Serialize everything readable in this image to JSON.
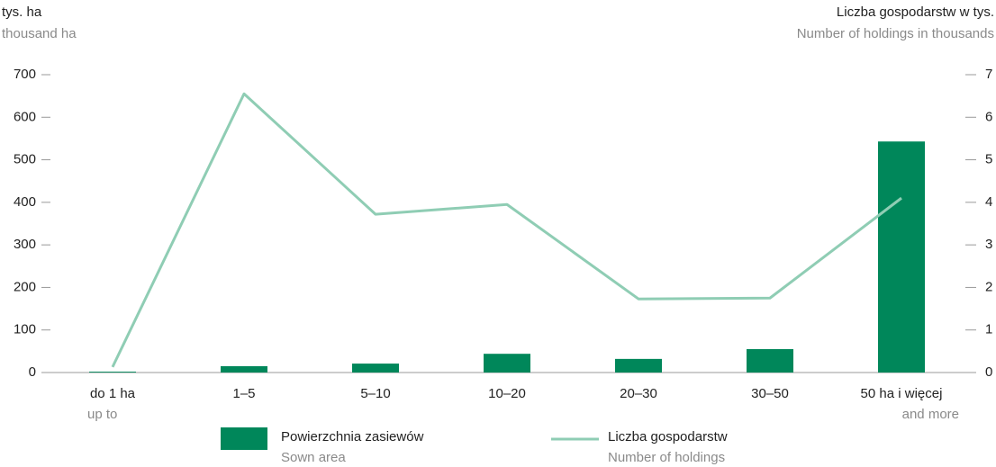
{
  "chart_data": {
    "type": "bar-line",
    "y_label": "tys. ha",
    "y_label_en": "thousand ha",
    "y2_label": "Liczba gospodarstw w tys.",
    "y2_label_en": "Number of holdings in thousands",
    "categories": [
      "do 1 ha",
      "1–5",
      "5–10",
      "10–20",
      "20–30",
      "30–50",
      "50 ha i więcej"
    ],
    "category_sublabels": [
      "up to",
      null,
      null,
      null,
      null,
      null,
      "and more"
    ],
    "series": [
      {
        "name": "Powierzchnia zasiewów",
        "name_en": "Sown area",
        "type": "bar",
        "color": "#00875a",
        "values": [
          2,
          15,
          21,
          44,
          32,
          55,
          543
        ]
      },
      {
        "name": "Liczba gospodarstw",
        "name_en": "Number of holdings",
        "type": "line",
        "axis": "y2",
        "color": "#8fcdb4",
        "values": [
          0.13,
          6.55,
          3.72,
          3.95,
          1.73,
          1.75,
          4.1
        ]
      }
    ],
    "ylim": [
      0,
      700
    ],
    "yticks": [
      0,
      100,
      200,
      300,
      400,
      500,
      600,
      700
    ],
    "y2lim": [
      0,
      7
    ],
    "y2ticks": [
      0,
      1,
      2,
      3,
      4,
      5,
      6,
      7
    ]
  }
}
